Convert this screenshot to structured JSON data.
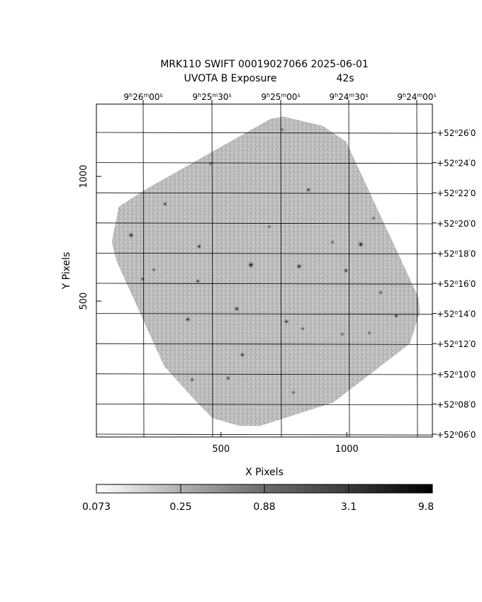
{
  "header": {
    "title_line1": "MRK110 SWIFT 00019027066 2025-06-01",
    "title_line2_left": "UVOTA B Exposure",
    "title_line2_right": "42s"
  },
  "axes": {
    "xlabel": "X Pixels",
    "ylabel": "Y Pixels",
    "x_ticks": [
      {
        "value": 500,
        "label": "500"
      },
      {
        "value": 1000,
        "label": "1000"
      }
    ],
    "y_ticks": [
      {
        "value": 500,
        "label": "500"
      },
      {
        "value": 1000,
        "label": "1000"
      }
    ],
    "xlim": [
      5,
      1340
    ],
    "ylim": [
      -45,
      1290
    ]
  },
  "ra_axis": {
    "labels": [
      {
        "h": "9",
        "m": "26",
        "s": "00"
      },
      {
        "h": "9",
        "m": "25",
        "s": "30"
      },
      {
        "h": "9",
        "m": "25",
        "s": "00"
      },
      {
        "h": "9",
        "m": "24",
        "s": "30"
      },
      {
        "h": "9",
        "m": "24",
        "s": "00"
      }
    ]
  },
  "dec_axis": {
    "labels": [
      {
        "deg": "+52",
        "min": "26",
        "sec": "0"
      },
      {
        "deg": "+52",
        "min": "24",
        "sec": "0"
      },
      {
        "deg": "+52",
        "min": "22",
        "sec": "0"
      },
      {
        "deg": "+52",
        "min": "20",
        "sec": "0"
      },
      {
        "deg": "+52",
        "min": "18",
        "sec": "0"
      },
      {
        "deg": "+52",
        "min": "16",
        "sec": "0"
      },
      {
        "deg": "+52",
        "min": "14",
        "sec": "0"
      },
      {
        "deg": "+52",
        "min": "12",
        "sec": "0"
      },
      {
        "deg": "+52",
        "min": "10",
        "sec": "0"
      },
      {
        "deg": "+52",
        "min": "08",
        "sec": "0"
      },
      {
        "deg": "+52",
        "min": "06",
        "sec": "0"
      }
    ]
  },
  "colorbar": {
    "scale": "log",
    "range": [
      0.073,
      9.8
    ],
    "labels": [
      "0.073",
      "0.25",
      "0.88",
      "3.1",
      "9.8"
    ],
    "colormap": "white-to-black"
  },
  "colors": {
    "background": "#ffffff",
    "image_fill": "#b4b4b4",
    "sources": "#202020",
    "axes": "#000000"
  }
}
